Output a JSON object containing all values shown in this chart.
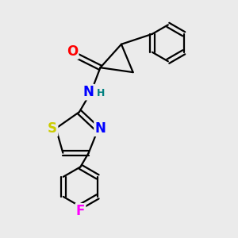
{
  "bg_color": "#ebebeb",
  "bond_color": "#000000",
  "bond_width": 1.6,
  "atom_colors": {
    "O": "#ff0000",
    "N": "#0000ff",
    "S": "#cccc00",
    "F": "#ff00ff",
    "H": "#008080",
    "C": "#000000"
  },
  "font_size": 10,
  "fig_size": [
    3.0,
    3.0
  ],
  "dpi": 100
}
